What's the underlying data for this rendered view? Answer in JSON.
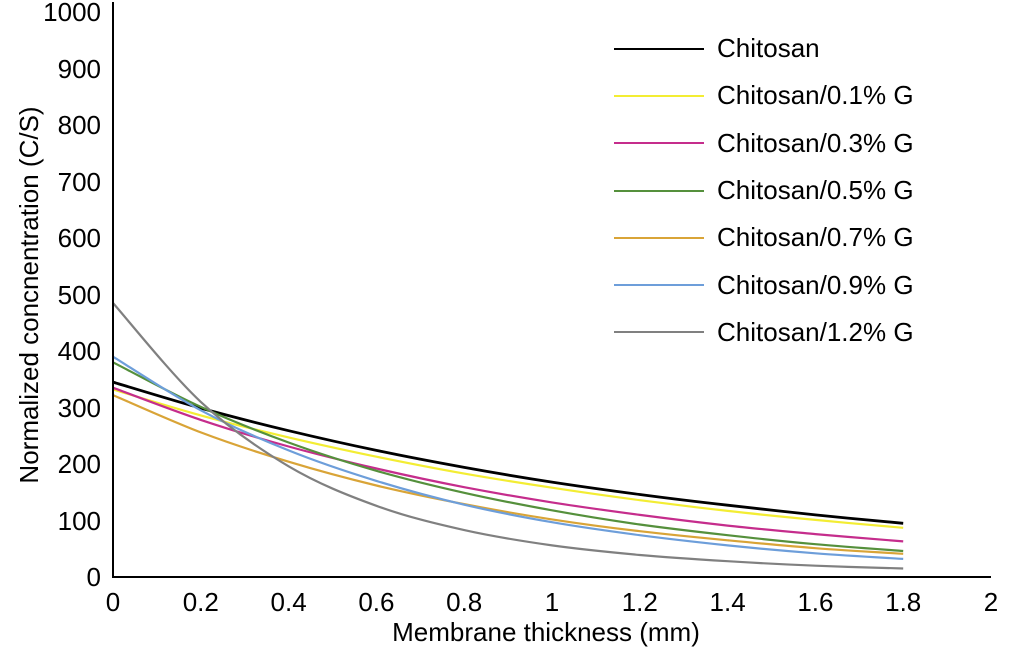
{
  "figure": {
    "background": "#ffffff",
    "axis_color": "#000000"
  },
  "chart_data": {
    "type": "line",
    "title": "",
    "xlabel": "Membrane thickness (mm)",
    "ylabel": "Normalized concnentration (C/S)",
    "x": [
      0,
      0.2,
      0.4,
      0.6,
      0.8,
      1.0,
      1.2,
      1.4,
      1.6,
      1.8
    ],
    "xlim": [
      0,
      2
    ],
    "ylim": [
      0,
      1000
    ],
    "x_tick_labels": [
      "0",
      "0.2",
      "0.4",
      "0.6",
      "0.8",
      "1",
      "1.2",
      "1.4",
      "1.6",
      "1.8",
      "2"
    ],
    "x_tick_values": [
      0,
      0.2,
      0.4,
      0.6,
      0.8,
      1,
      1.2,
      1.4,
      1.6,
      1.8,
      2
    ],
    "y_tick_labels": [
      "0",
      "100",
      "200",
      "300",
      "400",
      "500",
      "600",
      "700",
      "800",
      "900",
      "1000"
    ],
    "y_tick_values": [
      0,
      100,
      200,
      300,
      400,
      500,
      600,
      700,
      800,
      900,
      1000
    ],
    "grid": false,
    "legend_position": "upper right",
    "series": [
      {
        "name": "Chitosan",
        "color": "#000000",
        "values": [
          345,
          299,
          259,
          224,
          194,
          168,
          146,
          127,
          110,
          95
        ]
      },
      {
        "name": "Chitosan/0.1% G",
        "color": "#f3ed33",
        "values": [
          332,
          286,
          247,
          213,
          183,
          158,
          136,
          117,
          101,
          87
        ]
      },
      {
        "name": "Chitosan/0.3% G",
        "color": "#c52d8c",
        "values": [
          335,
          278,
          231,
          192,
          159,
          132,
          110,
          91,
          76,
          63
        ]
      },
      {
        "name": "Chitosan/0.5% G",
        "color": "#55903c",
        "values": [
          380,
          301,
          238,
          188,
          149,
          118,
          93,
          74,
          58,
          46
        ]
      },
      {
        "name": "Chitosan/0.7% G",
        "color": "#d9a437",
        "values": [
          322,
          256,
          204,
          162,
          129,
          102,
          81,
          65,
          51,
          41
        ]
      },
      {
        "name": "Chitosan/0.9% G",
        "color": "#6d9eda",
        "values": [
          390,
          295,
          224,
          170,
          128,
          97,
          74,
          56,
          42,
          32
        ]
      },
      {
        "name": "Chitosan/1.2% G",
        "color": "#808080",
        "values": [
          485,
          310,
          196,
          126,
          83,
          56,
          39,
          28,
          20,
          15
        ]
      }
    ]
  }
}
